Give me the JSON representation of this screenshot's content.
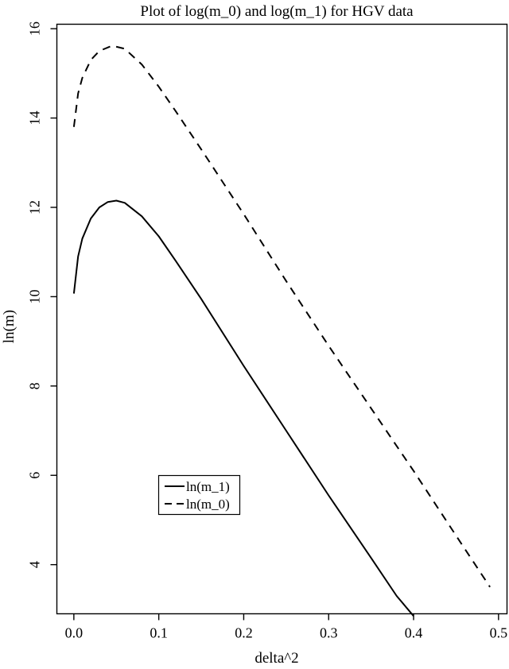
{
  "chart_data": {
    "type": "line",
    "title": "Plot of log(m_0) and log(m_1) for HGV data",
    "xlabel": "delta^2",
    "ylabel": "ln(m)",
    "xlim": [
      -0.02,
      0.51
    ],
    "ylim": [
      2.9,
      16.1
    ],
    "x_ticks": [
      0.0,
      0.1,
      0.2,
      0.3,
      0.4,
      0.5
    ],
    "x_tick_labels": [
      "0.0",
      "0.1",
      "0.2",
      "0.3",
      "0.4",
      "0.5"
    ],
    "y_ticks": [
      4,
      6,
      8,
      10,
      12,
      14,
      16
    ],
    "y_tick_labels": [
      "4",
      "6",
      "8",
      "10",
      "12",
      "14",
      "16"
    ],
    "grid": false,
    "legend_position": "center-left",
    "series": [
      {
        "name": "ln(m_1)",
        "style": "solid",
        "color": "#000000",
        "x": [
          0.0,
          0.005,
          0.01,
          0.02,
          0.03,
          0.04,
          0.05,
          0.06,
          0.08,
          0.1,
          0.12,
          0.15,
          0.2,
          0.25,
          0.3,
          0.35,
          0.38,
          0.4
        ],
        "y": [
          10.07,
          10.9,
          11.3,
          11.75,
          12.0,
          12.12,
          12.15,
          12.1,
          11.8,
          11.35,
          10.8,
          9.95,
          8.45,
          7.0,
          5.55,
          4.15,
          3.3,
          2.85
        ]
      },
      {
        "name": "ln(m_0)",
        "style": "dashed",
        "color": "#000000",
        "x": [
          0.0,
          0.005,
          0.01,
          0.02,
          0.03,
          0.045,
          0.06,
          0.08,
          0.1,
          0.12,
          0.15,
          0.2,
          0.25,
          0.3,
          0.35,
          0.4,
          0.45,
          0.49
        ],
        "y": [
          13.8,
          14.55,
          14.9,
          15.3,
          15.5,
          15.62,
          15.55,
          15.2,
          14.7,
          14.15,
          13.3,
          11.85,
          10.35,
          8.9,
          7.5,
          6.1,
          4.65,
          3.5
        ]
      }
    ]
  }
}
